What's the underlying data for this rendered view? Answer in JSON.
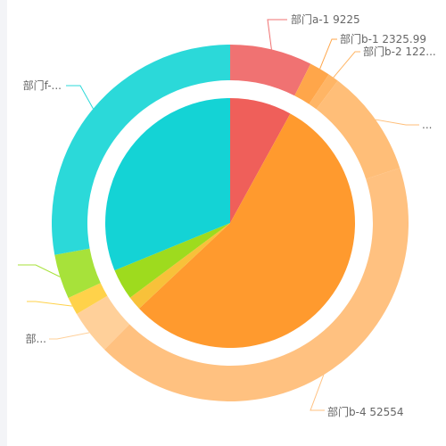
{
  "chart_data": {
    "type": "pie",
    "series": [
      {
        "kind": "inner-pie",
        "slices": [
          {
            "value": 8000,
            "color": "#ef5f5a"
          },
          {
            "value": 55000,
            "color": "#ff9a2e"
          },
          {
            "value": 1800,
            "color": "#f8c13a"
          },
          {
            "value": 4000,
            "color": "#9edb1e"
          },
          {
            "value": 31200,
            "color": "#14d3d5"
          }
        ]
      },
      {
        "kind": "outer-ring",
        "slices": [
          {
            "name": "部门a-1",
            "value": 9225,
            "color": "#f07272"
          },
          {
            "name": "部门b-1",
            "value": 2325.99,
            "color": "#ffa64a"
          },
          {
            "name": "部门b-2",
            "value": 1220,
            "color": "#ffb565"
          },
          {
            "name": "",
            "value": 12000,
            "color": "#ffbe78"
          },
          {
            "name": "部门b-4",
            "value": 52554,
            "color": "#ffc180"
          },
          {
            "name": "",
            "value": 5000,
            "color": "#ffd09a"
          },
          {
            "name": "",
            "value": 2000,
            "color": "#ffd24a"
          },
          {
            "name": "",
            "value": 5000,
            "color": "#a7e23a"
          },
          {
            "name": "",
            "value": 34500,
            "color": "#2bd9d9"
          }
        ]
      }
    ],
    "labels": [
      {
        "text": "部门a-1 9225"
      },
      {
        "text": "部门b-1 2325.99"
      },
      {
        "text": "部门b-2 122..."
      },
      {
        "text": "..."
      },
      {
        "text": "部门b-4 52554"
      },
      {
        "text": "部..."
      },
      {
        "text": ""
      },
      {
        "text": ""
      },
      {
        "text": "部门f-..."
      }
    ]
  }
}
